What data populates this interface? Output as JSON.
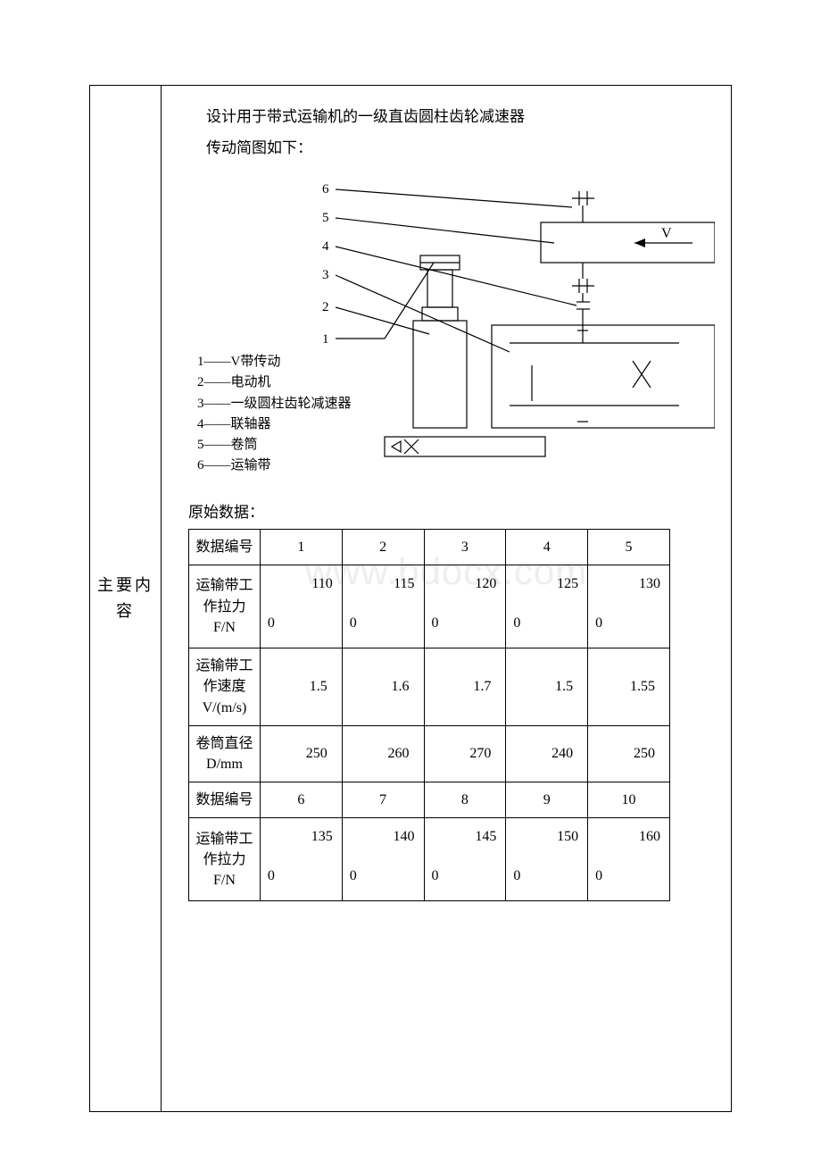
{
  "document": {
    "left_label": "主要内容",
    "title": "设计用于带式运输机的一级直齿圆柱齿轮减速器",
    "subtitle": "传动简图如下：",
    "watermark": "www.bdocx.com"
  },
  "diagram": {
    "callouts": [
      "6",
      "5",
      "4",
      "3",
      "2",
      "1"
    ],
    "arrow_label": "V",
    "legend_items": [
      "1——V带传动",
      "2——电动机",
      "3——一级圆柱齿轮减速器",
      "4——联轴器",
      "5——卷筒",
      "6——运输带"
    ],
    "line_color": "#000000",
    "line_width": 1.2
  },
  "data_section": {
    "heading": "原始数据：",
    "rows": [
      {
        "label": "数据编号",
        "type": "center",
        "height": "short",
        "values": [
          "1",
          "2",
          "3",
          "4",
          "5"
        ]
      },
      {
        "label": "运输带工作拉力F/N",
        "type": "split",
        "height": "tall",
        "values": [
          "1100",
          "1150",
          "1200",
          "1250",
          "1300"
        ],
        "split_big": [
          "110",
          "115",
          "120",
          "125",
          "130"
        ],
        "split_zero": [
          "0",
          "0",
          "0",
          "0",
          "0"
        ]
      },
      {
        "label": "运输带工作速度V/(m/s)",
        "type": "right",
        "height": "tall",
        "values": [
          "1.5",
          "1.6",
          "1.7",
          "1.5",
          "1.55"
        ]
      },
      {
        "label": "卷筒直径D/mm",
        "type": "right",
        "height": "short",
        "values": [
          "250",
          "260",
          "270",
          "240",
          "250"
        ]
      },
      {
        "label": "数据编号",
        "type": "center",
        "height": "short",
        "values": [
          "6",
          "7",
          "8",
          "9",
          "10"
        ]
      },
      {
        "label": "运输带工作拉力F/N",
        "type": "split",
        "height": "tall",
        "values": [
          "1350",
          "1400",
          "1450",
          "1500",
          "1600"
        ],
        "split_big": [
          "135",
          "140",
          "145",
          "150",
          "160"
        ],
        "split_zero": [
          "0",
          "0",
          "0",
          "0",
          "0"
        ]
      }
    ]
  },
  "styling": {
    "page_bg": "#ffffff",
    "text_color": "#000000",
    "border_color": "#000000",
    "watermark_color": "#eeeeee",
    "font_family": "SimSun",
    "base_fontsize": 16
  }
}
